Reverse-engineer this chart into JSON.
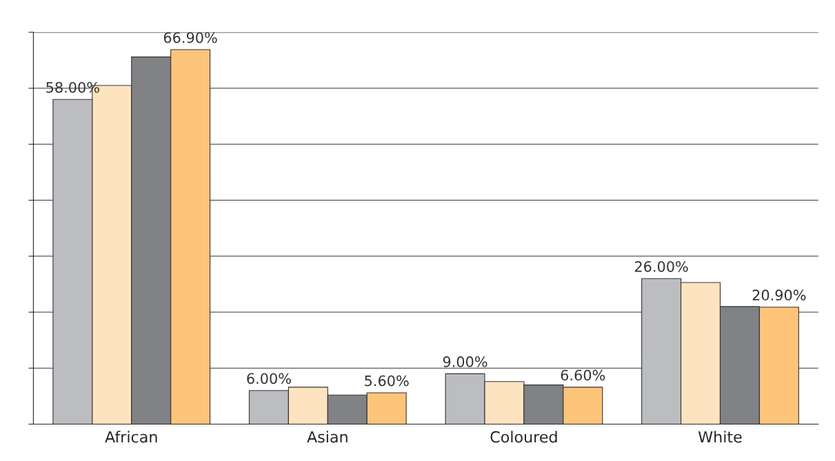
{
  "chart_data": {
    "type": "bar",
    "categories": [
      "African",
      "Asian",
      "Coloured",
      "White"
    ],
    "series": [
      {
        "color": "#bcbdc0",
        "values": [
          58.0,
          6.0,
          9.0,
          26.0
        ],
        "value_labels": [
          "58.00%",
          "6.00%",
          "9.00%",
          "26.00%"
        ]
      },
      {
        "color": "#fde3c0",
        "values": [
          60.5,
          6.6,
          7.6,
          25.3
        ],
        "value_labels": [
          null,
          null,
          null,
          null
        ]
      },
      {
        "color": "#808285",
        "values": [
          65.6,
          5.2,
          7.0,
          21.0
        ],
        "value_labels": [
          null,
          null,
          null,
          null
        ]
      },
      {
        "color": "#fdc47a",
        "values": [
          66.9,
          5.6,
          6.6,
          20.9
        ],
        "value_labels": [
          "66.90%",
          "5.60%",
          "6.60%",
          "20.90%"
        ]
      }
    ],
    "ylim": [
      0,
      70
    ],
    "yticks": [
      {
        "value": 0,
        "label": null
      },
      {
        "value": 10,
        "label": null
      },
      {
        "value": 20,
        "label": null
      },
      {
        "value": 30,
        "label": null
      },
      {
        "value": 40,
        "label": null
      },
      {
        "value": 50,
        "label": null
      },
      {
        "value": 60,
        "label": null
      },
      {
        "value": 70,
        "label": null
      }
    ],
    "tick_labels": "x",
    "grid": "y",
    "legend": false
  }
}
